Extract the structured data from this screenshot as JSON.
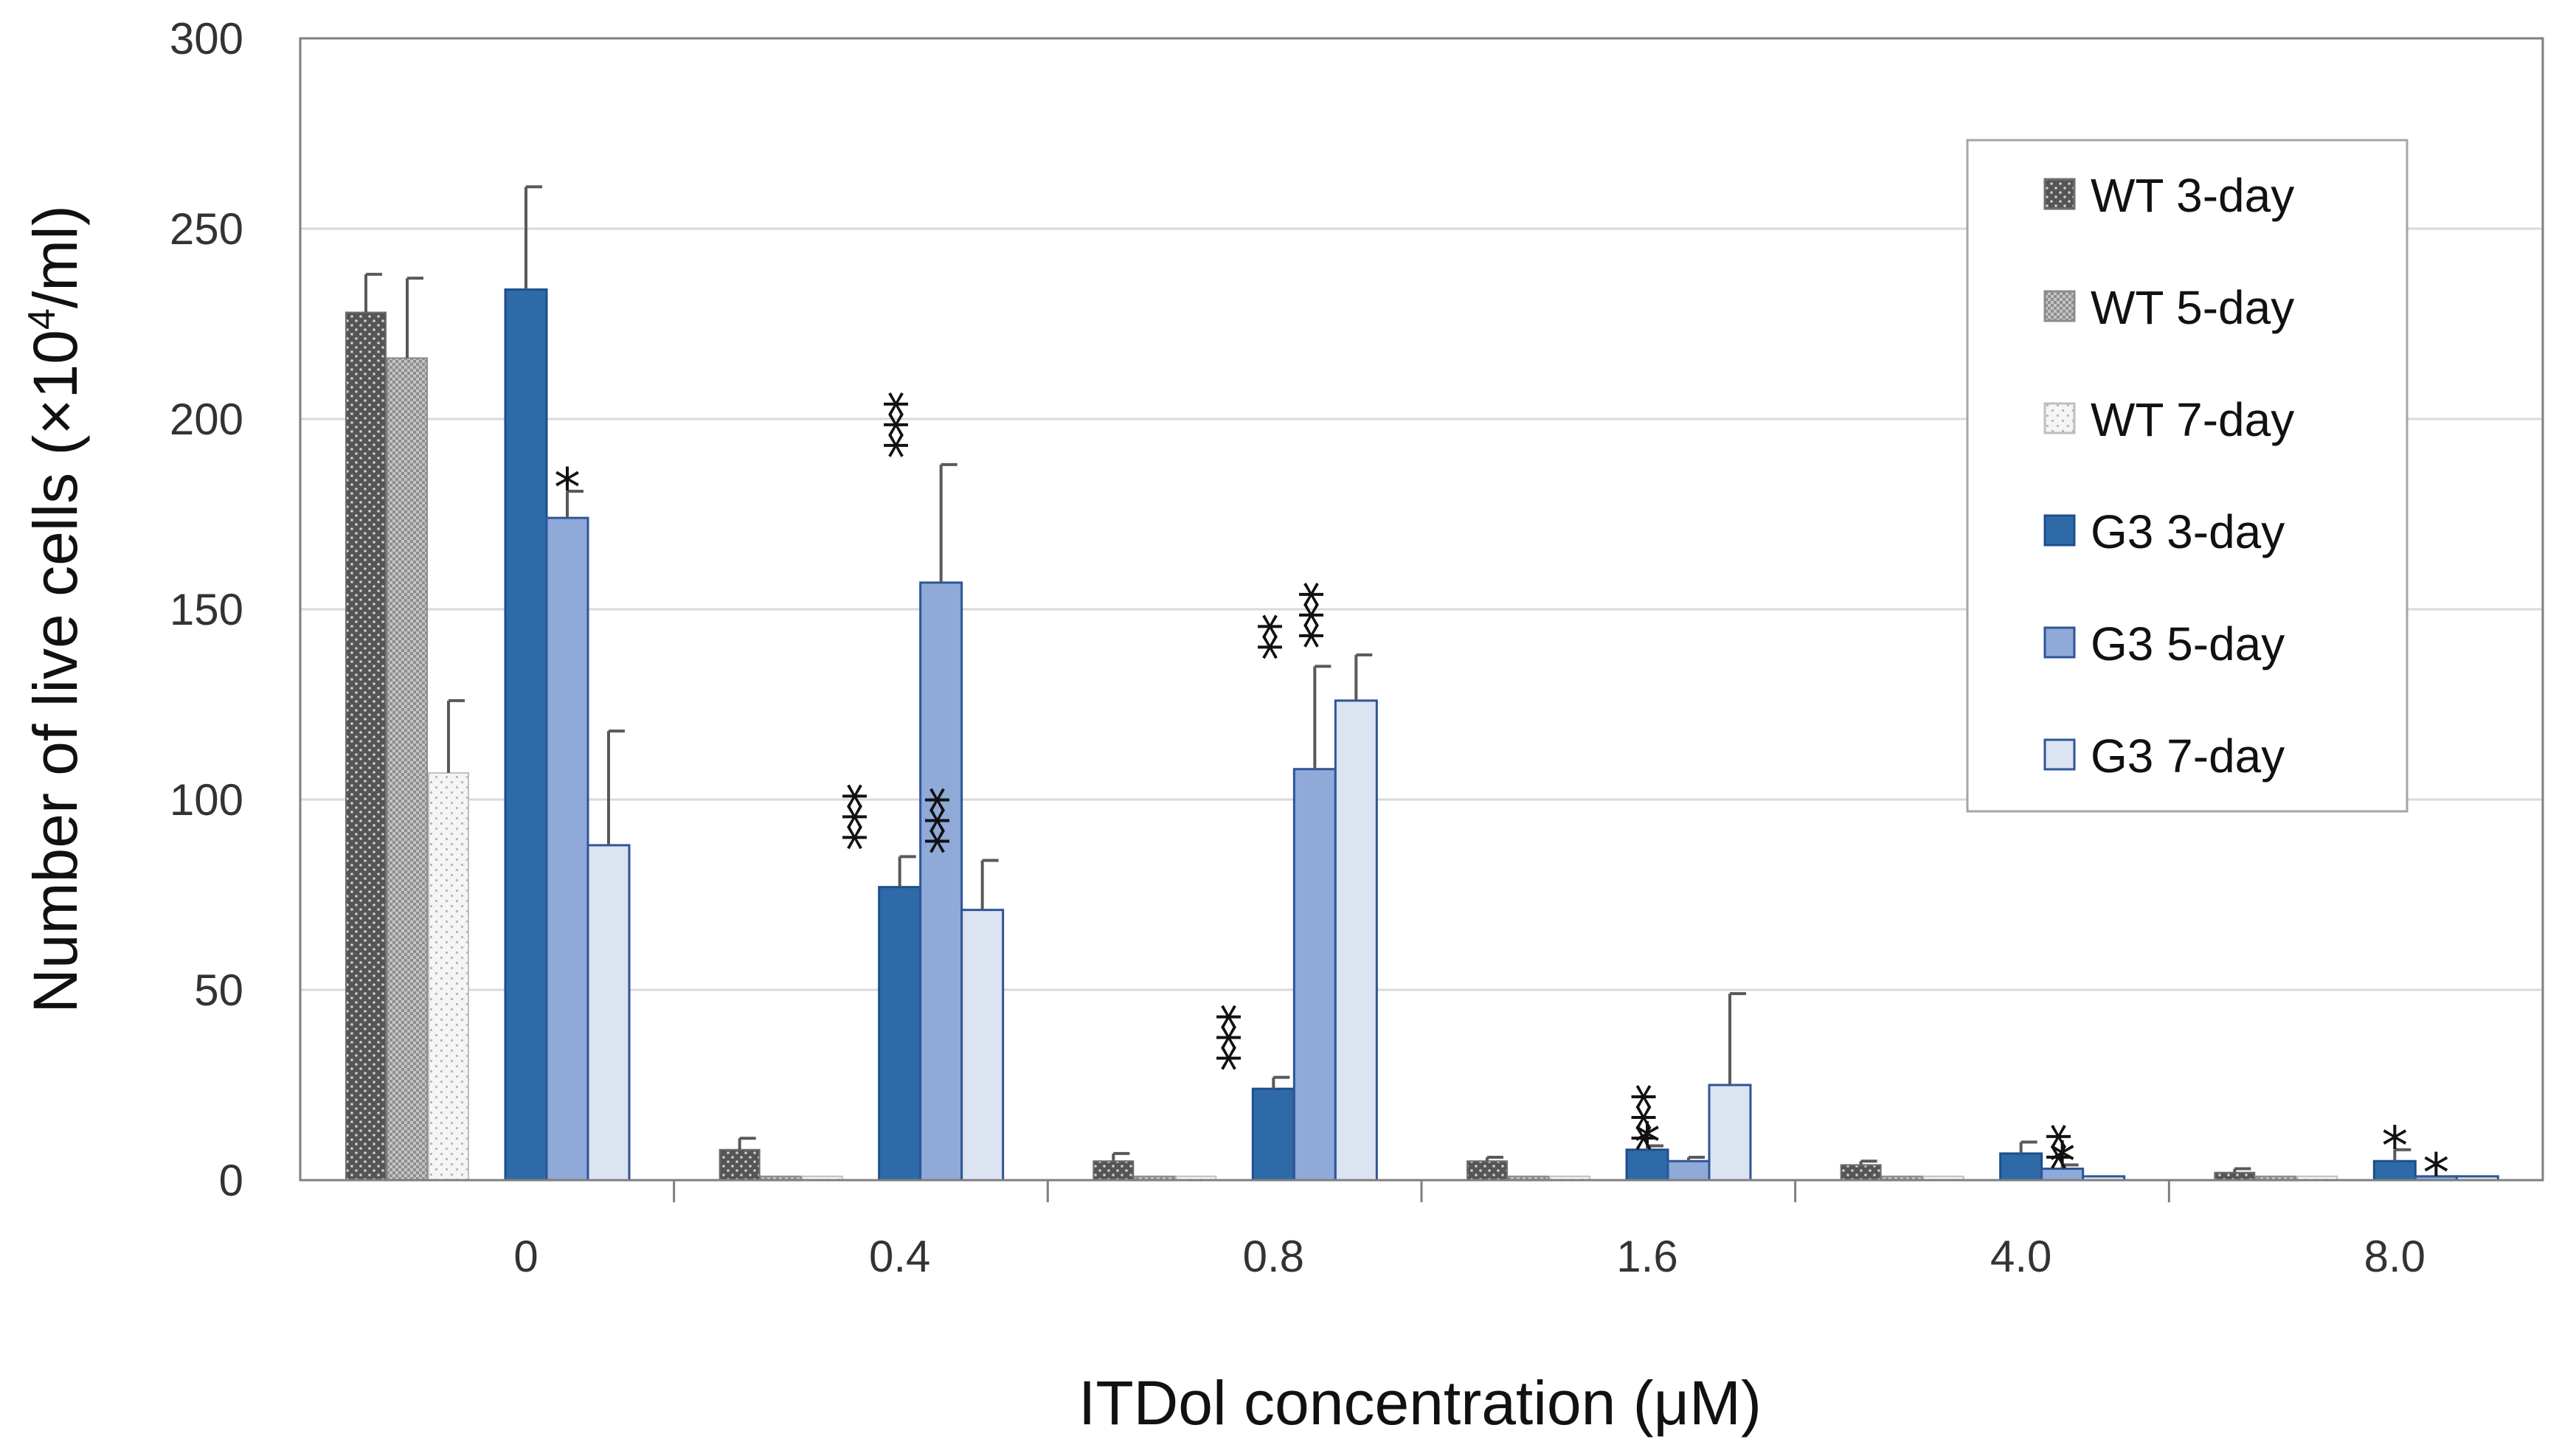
{
  "chart_data": {
    "type": "bar",
    "title": "",
    "xlabel": "ITDol concentration (μM)",
    "ylabel_main": "Number of live cells (×10",
    "ylabel_sup": "4",
    "ylabel_tail": "/ml)",
    "ylim": [
      0,
      300
    ],
    "yticks": [
      "0",
      "50",
      "100",
      "150",
      "200",
      "250",
      "300"
    ],
    "grid": true,
    "legend_position": "top-right",
    "categories": [
      "0",
      "0.4",
      "0.8",
      "1.6",
      "4.0",
      "8.0"
    ],
    "series": [
      {
        "name": "WT 3-day",
        "values": [
          228,
          8,
          5,
          5,
          4,
          2
        ],
        "errors": [
          10,
          3,
          2,
          1,
          1,
          1
        ],
        "stars": [
          "",
          "",
          "",
          "",
          "",
          ""
        ],
        "fill": "wt3",
        "color": "#595959"
      },
      {
        "name": "WT 5-day",
        "values": [
          216,
          1,
          1,
          1,
          1,
          1
        ],
        "errors": [
          21,
          0,
          0,
          0,
          0,
          0
        ],
        "stars": [
          "",
          "",
          "",
          "",
          "",
          ""
        ],
        "fill": "wt5",
        "color": "#a6a6a6"
      },
      {
        "name": "WT 7-day",
        "values": [
          107,
          1,
          1,
          1,
          1,
          1
        ],
        "errors": [
          19,
          0,
          0,
          0,
          0,
          0
        ],
        "stars": [
          "",
          "",
          "",
          "",
          "",
          ""
        ],
        "fill": "wt7",
        "color": "#f2f2f2"
      },
      {
        "name": "G3 3-day",
        "values": [
          234,
          77,
          24,
          8,
          7,
          5
        ],
        "errors": [
          27,
          8,
          3,
          1,
          3,
          3
        ],
        "stars": [
          "",
          "***",
          "***",
          "*",
          "",
          "*"
        ],
        "fill": "g3a",
        "color": "#2e6aa8"
      },
      {
        "name": "G3 5-day",
        "values": [
          174,
          157,
          108,
          5,
          3,
          1
        ],
        "errors": [
          7,
          31,
          27,
          1,
          1,
          0
        ],
        "stars": [
          "*",
          "***",
          "**",
          "***",
          "*",
          "*"
        ],
        "fill": "g3b",
        "color": "#8fa9d8"
      },
      {
        "name": "G3 7-day",
        "values": [
          88,
          71,
          126,
          25,
          1,
          1
        ],
        "errors": [
          30,
          13,
          12,
          24,
          0,
          0
        ],
        "stars": [
          "",
          "***",
          "***",
          "",
          "**",
          ""
        ],
        "fill": "g3c",
        "color": "#dce4f2"
      }
    ]
  }
}
